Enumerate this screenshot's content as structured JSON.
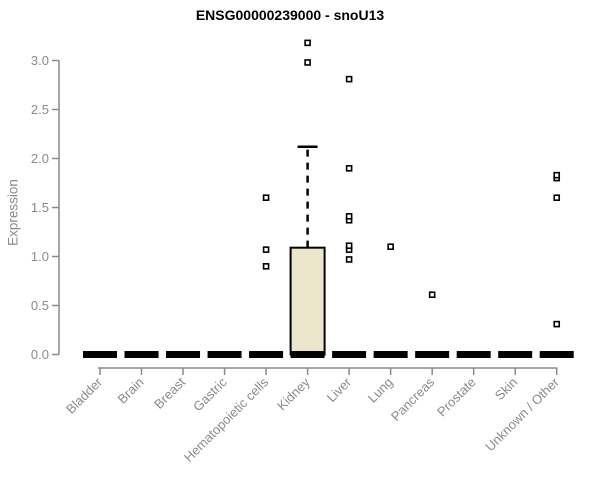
{
  "chart_data": {
    "type": "boxplot",
    "title": "ENSG00000239000 - snoU13",
    "ylabel": "Expression",
    "xlabel": "",
    "ylim": [
      0.0,
      3.25
    ],
    "grid": false,
    "legend": "none",
    "yticks": [
      {
        "value": 0.0,
        "label": "0.0"
      },
      {
        "value": 0.5,
        "label": "0.5"
      },
      {
        "value": 1.0,
        "label": "1.0"
      },
      {
        "value": 1.5,
        "label": "1.5"
      },
      {
        "value": 2.0,
        "label": "2.0"
      },
      {
        "value": 2.5,
        "label": "2.5"
      },
      {
        "value": 3.0,
        "label": "3.0"
      }
    ],
    "categories": [
      "Bladder",
      "Brain",
      "Breast",
      "Gastric",
      "Hematopoietic cells",
      "Kidney",
      "Liver",
      "Lung",
      "Pancreas",
      "Prostate",
      "Skin",
      "Unknown / Other"
    ],
    "boxes": [
      {
        "category": "Bladder",
        "q1": 0,
        "median": 0,
        "q3": 0,
        "whisker_low": 0,
        "whisker_high": 0,
        "outliers": []
      },
      {
        "category": "Brain",
        "q1": 0,
        "median": 0,
        "q3": 0,
        "whisker_low": 0,
        "whisker_high": 0,
        "outliers": []
      },
      {
        "category": "Breast",
        "q1": 0,
        "median": 0,
        "q3": 0,
        "whisker_low": 0,
        "whisker_high": 0,
        "outliers": []
      },
      {
        "category": "Gastric",
        "q1": 0,
        "median": 0,
        "q3": 0,
        "whisker_low": 0,
        "whisker_high": 0,
        "outliers": []
      },
      {
        "category": "Hematopoietic cells",
        "q1": 0,
        "median": 0,
        "q3": 0,
        "whisker_low": 0,
        "whisker_high": 0,
        "outliers": [
          0.9,
          1.07,
          1.6
        ]
      },
      {
        "category": "Kidney",
        "q1": 0,
        "median": 0,
        "q3": 1.09,
        "whisker_low": 0,
        "whisker_high": 2.12,
        "outliers": [
          2.98,
          3.18
        ]
      },
      {
        "category": "Liver",
        "q1": 0,
        "median": 0,
        "q3": 0,
        "whisker_low": 0,
        "whisker_high": 0,
        "outliers": [
          0.97,
          1.07,
          1.11,
          1.37,
          1.41,
          1.9,
          2.81
        ]
      },
      {
        "category": "Lung",
        "q1": 0,
        "median": 0,
        "q3": 0,
        "whisker_low": 0,
        "whisker_high": 0,
        "outliers": [
          1.1
        ]
      },
      {
        "category": "Pancreas",
        "q1": 0,
        "median": 0,
        "q3": 0,
        "whisker_low": 0,
        "whisker_high": 0,
        "outliers": [
          0.61
        ]
      },
      {
        "category": "Prostate",
        "q1": 0,
        "median": 0,
        "q3": 0,
        "whisker_low": 0,
        "whisker_high": 0,
        "outliers": []
      },
      {
        "category": "Skin",
        "q1": 0,
        "median": 0,
        "q3": 0,
        "whisker_low": 0,
        "whisker_high": 0,
        "outliers": []
      },
      {
        "category": "Unknown / Other",
        "q1": 0,
        "median": 0,
        "q3": 0,
        "whisker_low": 0,
        "whisker_high": 0,
        "outliers": [
          0.31,
          1.6,
          1.8,
          1.83
        ]
      }
    ],
    "style": {
      "box_fill": "#ece6cc",
      "box_stroke": "#000000",
      "outlier_fill": "#ffffff",
      "outlier_stroke": "#000000",
      "axis_color": "#8a8a8a",
      "tick_label_color": "#8a8a8a",
      "title_color": "#000000",
      "background": "#ffffff"
    }
  }
}
